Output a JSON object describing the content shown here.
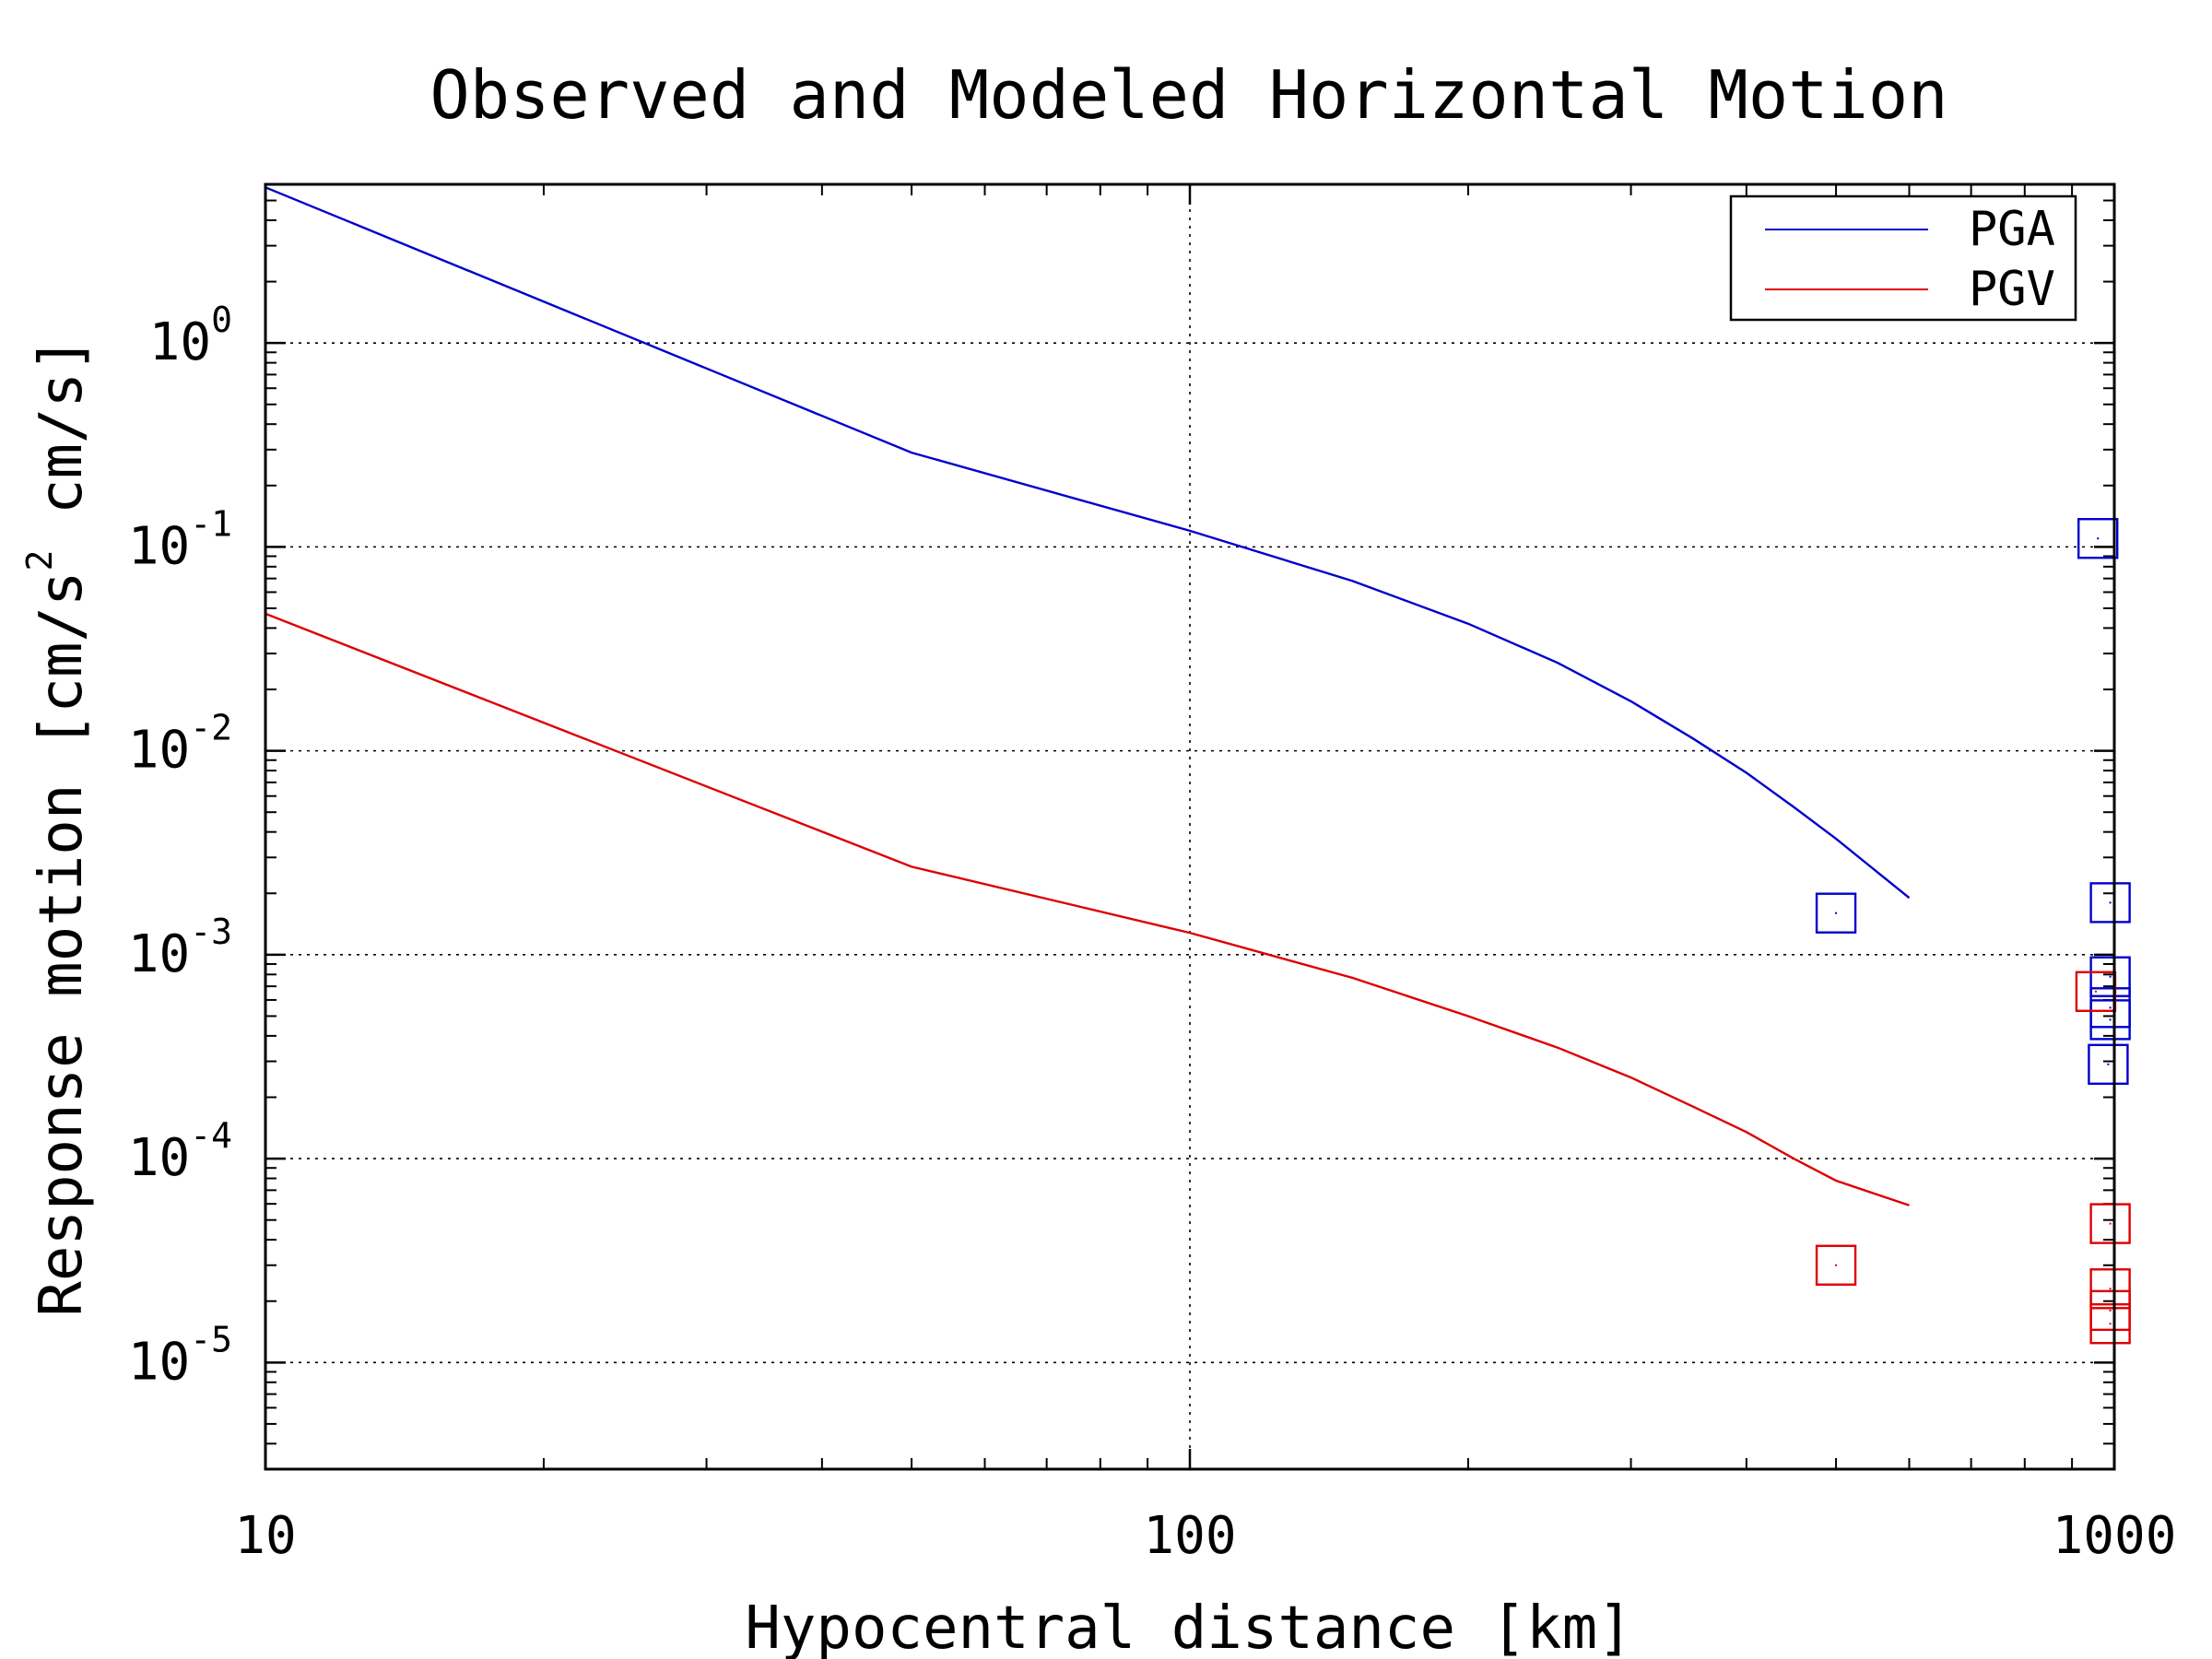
{
  "chart_data": {
    "type": "line",
    "title": "Observed and Modeled Horizontal Motion",
    "xlabel": "Hypocentral distance [km]",
    "ylabel": "Response motion [cm/s² cm/s]",
    "ylabel_parts": {
      "prefix": "Response motion [cm/s",
      "sup": "2",
      "suffix": " cm/s]"
    },
    "x_scale": "log",
    "y_scale": "log",
    "xlim": [
      10,
      1000
    ],
    "ylim": [
      3e-06,
      6
    ],
    "x_ticks": [
      {
        "value": 10,
        "label": "10"
      },
      {
        "value": 100,
        "label": "100"
      },
      {
        "value": 1000,
        "label": "1000"
      }
    ],
    "y_ticks": [
      {
        "value": 1,
        "base": "10",
        "exp": "0"
      },
      {
        "value": 0.1,
        "base": "10",
        "exp": "-1"
      },
      {
        "value": 0.01,
        "base": "10",
        "exp": "-2"
      },
      {
        "value": 0.001,
        "base": "10",
        "exp": "-3"
      },
      {
        "value": 0.0001,
        "base": "10",
        "exp": "-4"
      },
      {
        "value": 1e-05,
        "base": "10",
        "exp": "-5"
      }
    ],
    "grid": true,
    "legend_position": "top-right",
    "series": [
      {
        "name": "PGA",
        "color": "#0000cc",
        "kind": "line",
        "points": [
          [
            10,
            5.8
          ],
          [
            50,
            0.29
          ],
          [
            100,
            0.12
          ],
          [
            150,
            0.068
          ],
          [
            200,
            0.042
          ],
          [
            250,
            0.027
          ],
          [
            300,
            0.0175
          ],
          [
            350,
            0.0115
          ],
          [
            400,
            0.0078
          ],
          [
            450,
            0.0053
          ],
          [
            500,
            0.0037
          ],
          [
            600,
            0.0019
          ]
        ]
      },
      {
        "name": "PGV",
        "color": "#dd0000",
        "kind": "line",
        "points": [
          [
            10,
            0.047
          ],
          [
            50,
            0.0027
          ],
          [
            100,
            0.00128
          ],
          [
            150,
            0.00077
          ],
          [
            200,
            0.0005
          ],
          [
            250,
            0.00035
          ],
          [
            300,
            0.00025
          ],
          [
            350,
            0.00018
          ],
          [
            400,
            0.000135
          ],
          [
            450,
            0.0001
          ],
          [
            500,
            7.8e-05
          ],
          [
            600,
            5.9e-05
          ]
        ]
      },
      {
        "name": "",
        "color": "#0000cc",
        "kind": "markers",
        "points": [
          [
            500,
            0.0016
          ],
          [
            960,
            0.11
          ],
          [
            990,
            0.0018
          ],
          [
            990,
            0.00078
          ],
          [
            990,
            0.00055
          ],
          [
            990,
            0.00048
          ],
          [
            985,
            0.00029
          ]
        ]
      },
      {
        "name": "",
        "color": "#dd0000",
        "kind": "markers",
        "points": [
          [
            500,
            3e-05
          ],
          [
            955,
            0.00066
          ],
          [
            990,
            4.8e-05
          ],
          [
            990,
            2.3e-05
          ],
          [
            990,
            1.8e-05
          ],
          [
            990,
            1.55e-05
          ]
        ]
      }
    ]
  }
}
